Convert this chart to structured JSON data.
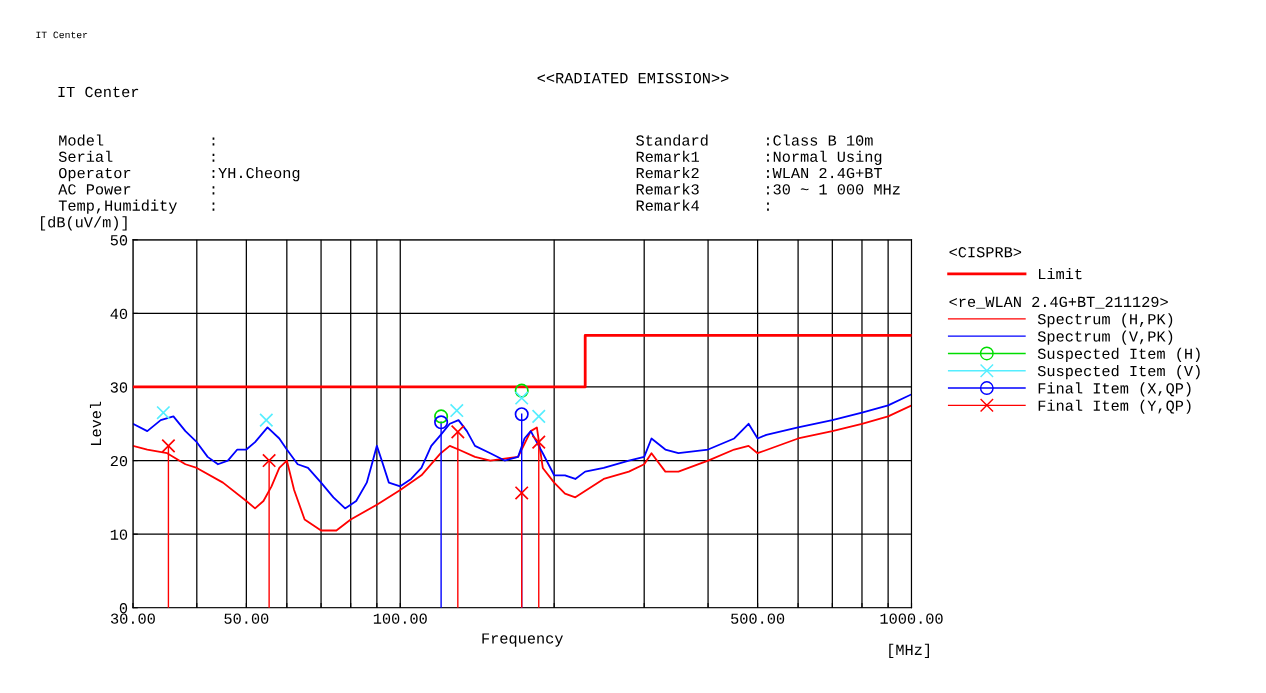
{
  "chart_data": {
    "type": "line",
    "title": "<<RADIATED EMISSION>>",
    "xlabel": "Frequency",
    "ylabel": "Level",
    "legend_title": "<CISPRB>",
    "annotations": [
      "IT Center",
      "IT Center",
      "Model :",
      "Serial :",
      "Operator :YH.Cheong",
      "AC Power :",
      "Temp,Humidity :",
      "Standard :Class B 10m",
      "Remark1 :Normal Using",
      "Remark2 :WLAN 2.4G+BT",
      "Remark3 :30 ~ 1 000 MHz",
      "Remark4 :",
      "[dB(uV/m)]",
      "[MHz]",
      "<re_WLAN 2.4G+BT_211129>"
    ],
    "log": "x",
    "grid": true,
    "legend": "right",
    "xlim": [
      30,
      1000
    ],
    "ylim": [
      0,
      50
    ],
    "xticks": [
      {
        "value": 30,
        "label": "30.00"
      },
      {
        "value": 40,
        "label": null
      },
      {
        "value": 50,
        "label": "50.00"
      },
      {
        "value": 60,
        "label": null
      },
      {
        "value": 70,
        "label": null
      },
      {
        "value": 80,
        "label": null
      },
      {
        "value": 90,
        "label": null
      },
      {
        "value": 100,
        "label": "100.00"
      },
      {
        "value": 200,
        "label": null
      },
      {
        "value": 300,
        "label": null
      },
      {
        "value": 400,
        "label": null
      },
      {
        "value": 500,
        "label": "500.00"
      },
      {
        "value": 600,
        "label": null
      },
      {
        "value": 700,
        "label": null
      },
      {
        "value": 800,
        "label": null
      },
      {
        "value": 900,
        "label": null
      },
      {
        "value": 1000,
        "label": "1000.00"
      }
    ],
    "yticks": [
      0,
      10,
      20,
      30,
      40,
      50
    ],
    "series": [
      {
        "name": "Limit",
        "type": "step",
        "color": "#ff0000",
        "x": [
          30,
          230,
          230,
          1000
        ],
        "values": [
          30,
          30,
          37,
          37
        ]
      },
      {
        "name": "Spectrum (H,PK)",
        "color": "#ff0000",
        "x": [
          30,
          32,
          35,
          38,
          40,
          45,
          50,
          52,
          54,
          56,
          58,
          60,
          62,
          65,
          70,
          75,
          80,
          90,
          100,
          110,
          120,
          125,
          130,
          140,
          150,
          170,
          180,
          185,
          190,
          200,
          210,
          220,
          250,
          280,
          300,
          310,
          330,
          350,
          400,
          450,
          480,
          500,
          600,
          700,
          800,
          900,
          1000
        ],
        "values": [
          22,
          21.5,
          21,
          19.5,
          19,
          17,
          14.5,
          13.5,
          14.5,
          16.5,
          19,
          20,
          16,
          12,
          10.5,
          10.5,
          12,
          14,
          16,
          18,
          21,
          22,
          21.5,
          20.5,
          20,
          20.5,
          24,
          24.5,
          19,
          17,
          15.5,
          15,
          17.5,
          18.5,
          19.5,
          21,
          18.5,
          18.5,
          20,
          21.5,
          22,
          21,
          23,
          24,
          25,
          26,
          27.5
        ]
      },
      {
        "name": "Spectrum (V,PK)",
        "color": "#0000ff",
        "x": [
          30,
          32,
          34,
          36,
          38,
          40,
          42,
          44,
          46,
          48,
          50,
          52,
          55,
          58,
          60,
          63,
          66,
          70,
          74,
          78,
          82,
          86,
          88,
          90,
          92,
          95,
          100,
          105,
          110,
          115,
          120,
          125,
          130,
          135,
          140,
          150,
          160,
          170,
          175,
          180,
          190,
          200,
          210,
          220,
          230,
          250,
          280,
          300,
          310,
          330,
          350,
          400,
          450,
          480,
          500,
          520,
          600,
          700,
          800,
          900,
          1000
        ],
        "values": [
          25,
          24,
          25.5,
          26,
          24,
          22.5,
          20.5,
          19.5,
          20,
          21.5,
          21.5,
          22.5,
          24.5,
          23,
          21.5,
          19.5,
          19,
          17,
          15,
          13.5,
          14.5,
          17,
          19.5,
          22,
          20,
          17,
          16.5,
          17.5,
          19,
          22,
          23.5,
          25,
          25.5,
          24,
          22,
          21,
          20,
          20.5,
          23,
          24,
          21,
          18,
          18,
          17.5,
          18.5,
          19,
          20,
          20.5,
          23,
          21.5,
          21,
          21.5,
          23,
          25,
          23,
          23.5,
          24.5,
          25.5,
          26.5,
          27.5,
          29
        ]
      },
      {
        "name": "Suspected Item (H)",
        "type": "scatter",
        "marker": "circle",
        "color": "#00dd00",
        "x": [
          120.2,
          172.8
        ],
        "values": [
          26,
          29.5
        ]
      },
      {
        "name": "Suspected Item (V)",
        "type": "scatter",
        "marker": "cross",
        "color": "#55eeff",
        "x": [
          34.4,
          54.7,
          129.0,
          172.8,
          186.6
        ],
        "values": [
          26.5,
          25.5,
          26.8,
          28.5,
          26
        ]
      },
      {
        "name": "Final Item (X,QP)",
        "type": "lollipop",
        "marker": "circle",
        "color": "#0000ff",
        "x": [
          120.2,
          172.8
        ],
        "values": [
          25.2,
          26.3
        ]
      },
      {
        "name": "Final Item (Y,QP)",
        "type": "lollipop",
        "marker": "cross",
        "color": "#ff0000",
        "x": [
          35.2,
          55.4,
          129.6,
          172.8,
          186.6
        ],
        "values": [
          22,
          20,
          23.9,
          15.6,
          22.5
        ]
      }
    ]
  }
}
